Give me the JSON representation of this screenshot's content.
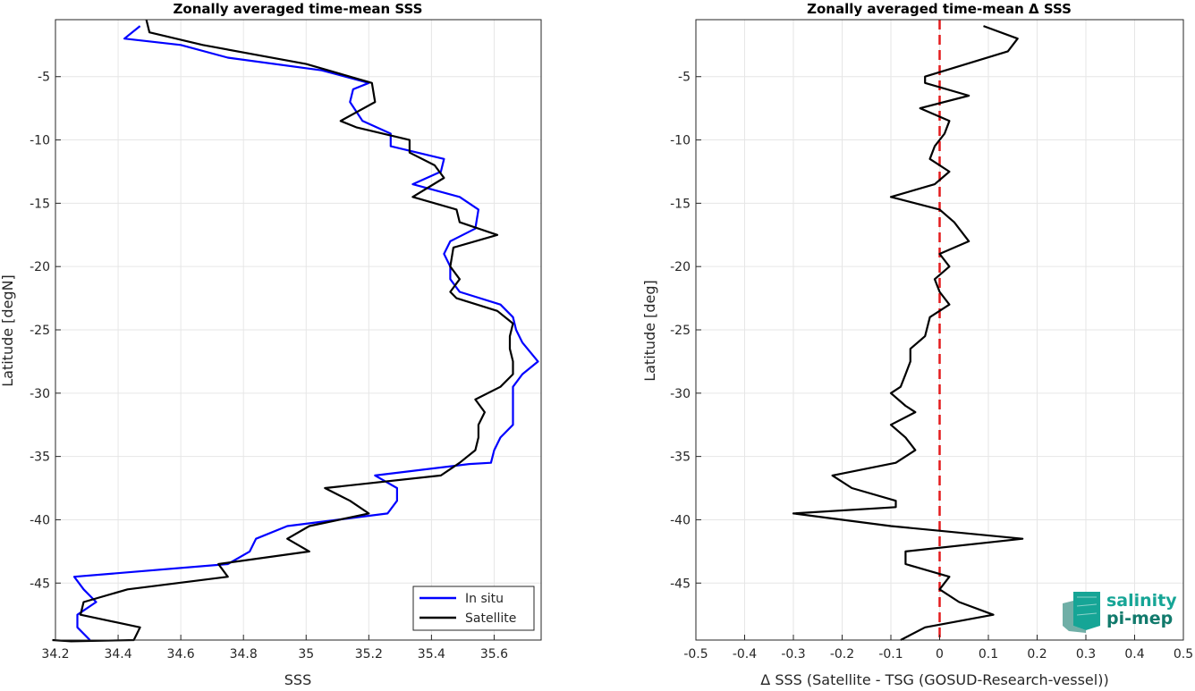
{
  "colors": {
    "in_situ": "#0000ff",
    "satellite": "#000000",
    "zero_line": "#e41a1c",
    "logo_teal": "#16a596",
    "logo_dark": "#117a6c"
  },
  "logo": {
    "line1": "salinity",
    "line2": "pi-mep"
  },
  "chart_data": [
    {
      "type": "line",
      "title": "Zonally averaged time-mean SSS",
      "xlabel": "SSS",
      "ylabel": "Latitude [degN]",
      "xlim": [
        34.2,
        35.75
      ],
      "ylim": [
        -49.5,
        -0.5
      ],
      "xticks": [
        "34.2",
        "34.4",
        "34.6",
        "34.8",
        "35",
        "35.2",
        "35.4",
        "35.6"
      ],
      "xtick_values": [
        34.2,
        34.4,
        34.6,
        34.8,
        35.0,
        35.2,
        35.4,
        35.6
      ],
      "yticks": [
        "-5",
        "-10",
        "-15",
        "-20",
        "-25",
        "-30",
        "-35",
        "-40",
        "-45"
      ],
      "ytick_values": [
        -5,
        -10,
        -15,
        -20,
        -25,
        -30,
        -35,
        -40,
        -45
      ],
      "grid": true,
      "legend": {
        "position": "bottom-right",
        "entries": [
          "In situ",
          "Satellite"
        ]
      },
      "series": [
        {
          "name": "In situ",
          "x": [
            34.47,
            34.42,
            34.6,
            34.75,
            35.05,
            35.2,
            35.15,
            35.14,
            35.18,
            35.27,
            35.27,
            35.44,
            35.43,
            35.34,
            35.49,
            35.55,
            35.54,
            35.46,
            35.44,
            35.46,
            35.46,
            35.49,
            35.62,
            35.66,
            35.67,
            35.69,
            35.74,
            35.69,
            35.66,
            35.66,
            35.66,
            35.66,
            35.62,
            35.6,
            35.59,
            35.52,
            35.22,
            35.29,
            35.29,
            35.26,
            34.94,
            34.84,
            34.82,
            34.75,
            34.26,
            34.29,
            34.33,
            34.27,
            34.27,
            34.31
          ],
          "y": [
            -1,
            -2,
            -2.5,
            -3.5,
            -4.5,
            -5.5,
            -6,
            -7,
            -8.5,
            -9.5,
            -10.5,
            -11.5,
            -12.5,
            -13.5,
            -14.5,
            -15.5,
            -17,
            -18,
            -19,
            -20,
            -21,
            -22,
            -23,
            -24,
            -25,
            -26,
            -27.5,
            -28.5,
            -29.5,
            -30.5,
            -31.5,
            -32.5,
            -33.5,
            -34.5,
            -35.5,
            -35.6,
            -36.5,
            -37.5,
            -38.5,
            -39.5,
            -40.5,
            -41.5,
            -42.5,
            -43.5,
            -44.5,
            -45.5,
            -46.5,
            -47.5,
            -48.5,
            -49.5
          ]
        },
        {
          "name": "Satellite",
          "x": [
            34.49,
            34.5,
            34.67,
            35.0,
            35.21,
            35.22,
            35.11,
            35.16,
            35.33,
            35.33,
            35.41,
            35.44,
            35.34,
            35.48,
            35.49,
            35.61,
            35.47,
            35.46,
            35.49,
            35.46,
            35.48,
            35.61,
            35.66,
            35.65,
            35.65,
            35.66,
            35.66,
            35.62,
            35.54,
            35.57,
            35.55,
            35.55,
            35.54,
            35.49,
            35.43,
            35.06,
            35.14,
            35.2,
            35.01,
            34.94,
            35.01,
            34.72,
            34.75,
            34.43,
            34.29,
            34.28,
            34.47,
            34.45,
            34.25,
            34.19
          ],
          "y": [
            -0.5,
            -1.5,
            -2.5,
            -4,
            -5.5,
            -7,
            -8.5,
            -9,
            -10,
            -11,
            -12,
            -13,
            -14.5,
            -15.5,
            -16.5,
            -17.5,
            -18.5,
            -20,
            -21,
            -22,
            -22.5,
            -23.5,
            -24.5,
            -25.5,
            -26.5,
            -27.5,
            -28.5,
            -29.5,
            -30.5,
            -31.5,
            -32.5,
            -33.5,
            -34.5,
            -35.5,
            -36.5,
            -37.5,
            -38.5,
            -39.5,
            -40.5,
            -41.5,
            -42.5,
            -43.5,
            -44.5,
            -45.5,
            -46.5,
            -47.5,
            -48.5,
            -49.5,
            -49.6,
            -49.5
          ]
        }
      ]
    },
    {
      "type": "line",
      "title": "Zonally averaged time-mean Δ SSS",
      "xlabel": "Δ SSS (Satellite - TSG (GOSUD-Research-vessel))",
      "ylabel": "Latitude [deg]",
      "xlim": [
        -0.5,
        0.5
      ],
      "ylim": [
        -49.5,
        -0.5
      ],
      "xticks": [
        "-0.5",
        "-0.4",
        "-0.3",
        "-0.2",
        "-0.1",
        "0",
        "0.1",
        "0.2",
        "0.3",
        "0.4",
        "0.5"
      ],
      "xtick_values": [
        -0.5,
        -0.4,
        -0.3,
        -0.2,
        -0.1,
        0,
        0.1,
        0.2,
        0.3,
        0.4,
        0.5
      ],
      "yticks": [
        "-5",
        "-10",
        "-15",
        "-20",
        "-25",
        "-30",
        "-35",
        "-40",
        "-45"
      ],
      "ytick_values": [
        -5,
        -10,
        -15,
        -20,
        -25,
        -30,
        -35,
        -40,
        -45
      ],
      "grid": true,
      "reference_line": {
        "x": 0,
        "style": "dashed",
        "color": "red"
      },
      "series": [
        {
          "name": "",
          "x": [
            0.09,
            0.16,
            0.14,
            -0.03,
            -0.03,
            0.06,
            -0.04,
            0.02,
            0.01,
            -0.01,
            -0.02,
            0.02,
            -0.01,
            -0.1,
            -0.0,
            0.03,
            0.06,
            0.0,
            0.02,
            -0.01,
            0.0,
            0.02,
            -0.02,
            -0.03,
            -0.06,
            -0.06,
            -0.07,
            -0.08,
            -0.1,
            -0.07,
            -0.05,
            -0.1,
            -0.07,
            -0.05,
            -0.09,
            -0.22,
            -0.18,
            -0.09,
            -0.09,
            -0.3,
            -0.1,
            0.17,
            -0.07,
            -0.07,
            0.02,
            -0.0,
            0.04,
            0.11,
            -0.03,
            -0.08
          ],
          "y": [
            -1,
            -2,
            -3,
            -5,
            -5.5,
            -6.5,
            -7.5,
            -8.5,
            -9.5,
            -10.5,
            -11.5,
            -12.5,
            -13.5,
            -14.5,
            -15.5,
            -16.5,
            -18,
            -19,
            -20,
            -21,
            -22,
            -23,
            -24,
            -25.5,
            -26.5,
            -27.5,
            -28.5,
            -29.5,
            -30,
            -31,
            -31.5,
            -32.5,
            -33.5,
            -34.5,
            -35.5,
            -36.5,
            -37.5,
            -38.5,
            -39,
            -39.5,
            -40.5,
            -41.5,
            -42.5,
            -43.5,
            -44.5,
            -45.5,
            -46.5,
            -47.5,
            -48.5,
            -49.5
          ]
        }
      ]
    }
  ]
}
